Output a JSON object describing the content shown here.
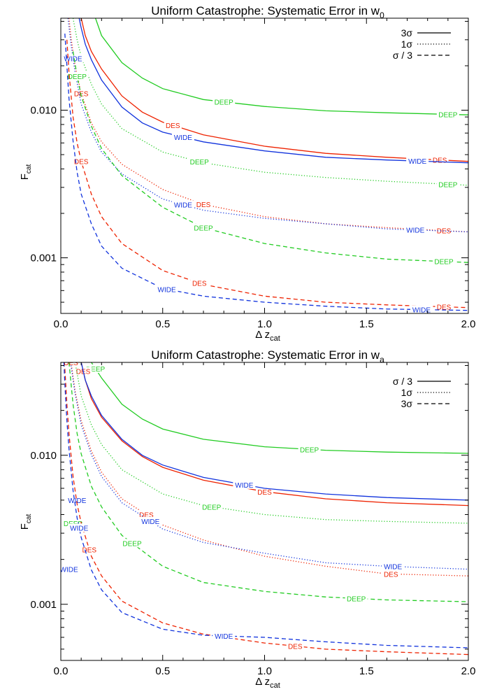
{
  "colors": {
    "DEEP": "#22cc22",
    "DES": "#ee2200",
    "WIDE": "#1133dd",
    "axis": "#000000"
  },
  "chart_data": [
    {
      "type": "line",
      "title": "Uniform Catastrophe: Systematic Error in w",
      "title_sub": "0",
      "xlabel": "Δ z",
      "xlabel_sub": "cat",
      "ylabel": "F",
      "ylabel_sub": "cat",
      "xlim": [
        0.0,
        2.0
      ],
      "ylim": [
        0.00042,
        0.042
      ],
      "yscale": "log",
      "xticks": [
        "0.0",
        "0.5",
        "1.0",
        "1.5",
        "2.0"
      ],
      "yticks": [
        "0.010",
        "0.001"
      ],
      "grid": false,
      "legend_position": "top-right",
      "legend": [
        {
          "label": "3σ",
          "style": "solid"
        },
        {
          "label": "1σ",
          "style": "dotted"
        },
        {
          "label": "σ / 3",
          "style": "dashed"
        }
      ],
      "series": [
        {
          "survey": "DEEP",
          "name": "DEEP",
          "style": "solid",
          "x": [
            0.17,
            0.2,
            0.3,
            0.4,
            0.5,
            0.7,
            1.0,
            1.3,
            1.6,
            2.0
          ],
          "y": [
            0.042,
            0.032,
            0.021,
            0.0165,
            0.014,
            0.0118,
            0.0106,
            0.0099,
            0.0096,
            0.0093
          ],
          "labels": [
            {
              "x": 0.8,
              "text": "DEEP"
            },
            {
              "x": 1.9,
              "text": "DEEP"
            }
          ]
        },
        {
          "survey": "DES",
          "name": "DES",
          "style": "solid",
          "x": [
            0.1,
            0.12,
            0.15,
            0.2,
            0.3,
            0.4,
            0.5,
            0.7,
            1.0,
            1.3,
            1.6,
            2.0
          ],
          "y": [
            0.042,
            0.032,
            0.025,
            0.019,
            0.0125,
            0.0097,
            0.0083,
            0.0068,
            0.0057,
            0.0051,
            0.0048,
            0.0045
          ],
          "labels": [
            {
              "x": 0.55,
              "text": "DES"
            },
            {
              "x": 1.86,
              "text": "DES"
            }
          ]
        },
        {
          "survey": "WIDE",
          "name": "WIDE",
          "style": "solid",
          "x": [
            0.09,
            0.1,
            0.12,
            0.15,
            0.2,
            0.3,
            0.4,
            0.5,
            0.7,
            1.0,
            1.3,
            1.6,
            2.0
          ],
          "y": [
            0.042,
            0.036,
            0.028,
            0.022,
            0.016,
            0.0105,
            0.0082,
            0.0071,
            0.0061,
            0.0053,
            0.0048,
            0.0046,
            0.0044
          ],
          "labels": [
            {
              "x": 0.6,
              "text": "WIDE"
            },
            {
              "x": 1.75,
              "text": "WIDE"
            }
          ]
        },
        {
          "survey": "DEEP",
          "name": "DEEP",
          "style": "dotted",
          "x": [
            0.06,
            0.08,
            0.1,
            0.15,
            0.2,
            0.3,
            0.5,
            0.7,
            1.0,
            1.3,
            1.6,
            2.0
          ],
          "y": [
            0.042,
            0.03,
            0.023,
            0.015,
            0.011,
            0.0075,
            0.0052,
            0.0044,
            0.0038,
            0.0035,
            0.0033,
            0.0031
          ],
          "labels": [
            {
              "x": 0.68,
              "text": "DEEP"
            },
            {
              "x": 1.9,
              "text": "DEEP"
            }
          ]
        },
        {
          "survey": "DES",
          "name": "DES",
          "style": "dotted",
          "x": [
            0.04,
            0.05,
            0.07,
            0.1,
            0.15,
            0.2,
            0.3,
            0.5,
            0.7,
            1.0,
            1.3,
            1.6,
            2.0
          ],
          "y": [
            0.042,
            0.031,
            0.02,
            0.013,
            0.0082,
            0.0061,
            0.0043,
            0.0029,
            0.0023,
            0.0019,
            0.0017,
            0.0016,
            0.0015
          ],
          "labels": [
            {
              "x": 0.1,
              "text": "DES"
            },
            {
              "x": 0.7,
              "text": "DES"
            },
            {
              "x": 1.88,
              "text": "DES"
            }
          ]
        },
        {
          "survey": "WIDE",
          "name": "WIDE",
          "style": "dotted",
          "x": [
            0.035,
            0.05,
            0.07,
            0.1,
            0.15,
            0.2,
            0.3,
            0.5,
            0.7,
            1.0,
            1.3,
            1.6,
            2.0
          ],
          "y": [
            0.042,
            0.028,
            0.018,
            0.011,
            0.0071,
            0.0052,
            0.0037,
            0.0025,
            0.0021,
            0.00185,
            0.0017,
            0.00157,
            0.0015
          ],
          "labels": [
            {
              "x": 0.06,
              "text": "WIDE"
            },
            {
              "x": 0.6,
              "text": "WIDE"
            },
            {
              "x": 1.74,
              "text": "WIDE"
            }
          ]
        },
        {
          "survey": "DEEP",
          "name": "DEEP",
          "style": "dashed",
          "x": [
            0.06,
            0.08,
            0.1,
            0.15,
            0.2,
            0.3,
            0.5,
            0.7,
            1.0,
            1.3,
            1.6,
            2.0
          ],
          "y": [
            0.025,
            0.017,
            0.0125,
            0.0078,
            0.0055,
            0.0036,
            0.0022,
            0.0016,
            0.00125,
            0.00108,
            0.00098,
            0.00093
          ],
          "labels": [
            {
              "x": 0.08,
              "text": "DEEP"
            },
            {
              "x": 0.7,
              "text": "DEEP"
            },
            {
              "x": 1.88,
              "text": "DEEP"
            }
          ]
        },
        {
          "survey": "DES",
          "name": "DES",
          "style": "dashed",
          "x": [
            0.03,
            0.04,
            0.06,
            0.08,
            0.1,
            0.15,
            0.2,
            0.3,
            0.5,
            0.7,
            1.0,
            1.3,
            1.6,
            2.0
          ],
          "y": [
            0.03,
            0.018,
            0.009,
            0.006,
            0.0045,
            0.0027,
            0.0019,
            0.00125,
            0.00082,
            0.00066,
            0.00055,
            0.0005,
            0.00048,
            0.00046
          ],
          "labels": [
            {
              "x": 0.1,
              "text": "DES"
            },
            {
              "x": 0.68,
              "text": "DES"
            },
            {
              "x": 1.88,
              "text": "DES"
            }
          ]
        },
        {
          "survey": "WIDE",
          "name": "WIDE",
          "style": "dashed",
          "x": [
            0.02,
            0.03,
            0.04,
            0.06,
            0.08,
            0.1,
            0.15,
            0.2,
            0.3,
            0.5,
            0.7,
            1.0,
            1.3,
            1.6,
            2.0
          ],
          "y": [
            0.033,
            0.02,
            0.012,
            0.0062,
            0.0038,
            0.0027,
            0.0017,
            0.0012,
            0.00085,
            0.00062,
            0.00055,
            0.0005,
            0.00047,
            0.00045,
            0.00044
          ],
          "labels": [
            {
              "x": 0.52,
              "text": "WIDE"
            },
            {
              "x": 1.77,
              "text": "WIDE"
            }
          ]
        }
      ]
    },
    {
      "type": "line",
      "title": "Uniform Catastrophe: Systematic Error in w",
      "title_sub": "a",
      "xlabel": "Δ z",
      "xlabel_sub": "cat",
      "ylabel": "F",
      "ylabel_sub": "cat",
      "xlim": [
        0.0,
        2.0
      ],
      "ylim": [
        0.00042,
        0.042
      ],
      "yscale": "log",
      "xticks": [
        "0.0",
        "0.5",
        "1.0",
        "1.5",
        "2.0"
      ],
      "yticks": [
        "0.010",
        "0.001"
      ],
      "grid": false,
      "legend_position": "top-right",
      "legend": [
        {
          "label": "σ / 3",
          "style": "solid"
        },
        {
          "label": "1σ",
          "style": "dotted"
        },
        {
          "label": "3σ",
          "style": "dashed"
        }
      ],
      "series": [
        {
          "survey": "DEEP",
          "name": "DEEP",
          "style": "solid",
          "x": [
            0.15,
            0.2,
            0.3,
            0.4,
            0.5,
            0.7,
            1.0,
            1.3,
            1.6,
            2.0
          ],
          "y": [
            0.042,
            0.033,
            0.022,
            0.0175,
            0.015,
            0.0128,
            0.0114,
            0.0108,
            0.0105,
            0.0103
          ],
          "labels": [
            {
              "x": 0.17,
              "text": "DEEP"
            },
            {
              "x": 1.22,
              "text": "DEEP"
            }
          ]
        },
        {
          "survey": "DES",
          "name": "DES",
          "style": "solid",
          "x": [
            0.1,
            0.12,
            0.15,
            0.2,
            0.3,
            0.4,
            0.5,
            0.7,
            1.0,
            1.3,
            1.6,
            2.0
          ],
          "y": [
            0.042,
            0.032,
            0.024,
            0.018,
            0.0125,
            0.0098,
            0.0083,
            0.0068,
            0.0057,
            0.0051,
            0.0048,
            0.0046
          ],
          "labels": [
            {
              "x": 0.11,
              "text": "DES"
            },
            {
              "x": 1.0,
              "text": "DES"
            }
          ]
        },
        {
          "survey": "WIDE",
          "name": "WIDE",
          "style": "solid",
          "x": [
            0.1,
            0.12,
            0.15,
            0.2,
            0.3,
            0.4,
            0.5,
            0.7,
            1.0,
            1.3,
            1.6,
            2.0
          ],
          "y": [
            0.042,
            0.032,
            0.025,
            0.0185,
            0.0128,
            0.01,
            0.0086,
            0.0071,
            0.006,
            0.0055,
            0.0052,
            0.005
          ],
          "labels": [
            {
              "x": 0.08,
              "text": "WIDE"
            },
            {
              "x": 0.9,
              "text": "WIDE"
            }
          ]
        },
        {
          "survey": "DEEP",
          "name": "DEEP",
          "style": "dotted",
          "x": [
            0.07,
            0.1,
            0.15,
            0.2,
            0.3,
            0.5,
            0.7,
            1.0,
            1.3,
            1.6,
            2.0
          ],
          "y": [
            0.042,
            0.025,
            0.016,
            0.0118,
            0.008,
            0.0055,
            0.0046,
            0.004,
            0.0037,
            0.0036,
            0.0035
          ],
          "labels": [
            {
              "x": 0.06,
              "text": "DEEP"
            },
            {
              "x": 0.74,
              "text": "DEEP"
            }
          ]
        },
        {
          "survey": "DES",
          "name": "DES",
          "style": "dotted",
          "x": [
            0.05,
            0.07,
            0.1,
            0.15,
            0.2,
            0.3,
            0.5,
            0.7,
            1.0,
            1.3,
            1.6,
            2.0
          ],
          "y": [
            0.042,
            0.027,
            0.017,
            0.0107,
            0.0077,
            0.0051,
            0.0034,
            0.0027,
            0.0021,
            0.0018,
            0.0016,
            0.00155
          ],
          "labels": [
            {
              "x": 0.05,
              "text": "DES"
            },
            {
              "x": 0.42,
              "text": "DES"
            },
            {
              "x": 1.62,
              "text": "DES"
            }
          ]
        },
        {
          "survey": "WIDE",
          "name": "WIDE",
          "style": "dotted",
          "x": [
            0.05,
            0.07,
            0.1,
            0.15,
            0.2,
            0.3,
            0.5,
            0.7,
            1.0,
            1.3,
            1.6,
            2.0
          ],
          "y": [
            0.04,
            0.026,
            0.016,
            0.0101,
            0.0072,
            0.0048,
            0.0032,
            0.0026,
            0.0022,
            0.0019,
            0.0018,
            0.00172
          ],
          "labels": [
            {
              "x": 0.04,
              "text": "WIDE"
            },
            {
              "x": 0.44,
              "text": "WIDE"
            },
            {
              "x": 1.63,
              "text": "WIDE"
            }
          ]
        },
        {
          "survey": "DEEP",
          "name": "DEEP",
          "style": "dashed",
          "x": [
            0.04,
            0.06,
            0.08,
            0.1,
            0.15,
            0.2,
            0.3,
            0.5,
            0.7,
            1.0,
            1.3,
            1.6,
            2.0
          ],
          "y": [
            0.042,
            0.022,
            0.014,
            0.0102,
            0.0062,
            0.0045,
            0.0029,
            0.0018,
            0.0014,
            0.00122,
            0.00112,
            0.00107,
            0.00104
          ],
          "labels": [
            {
              "x": 0.35,
              "text": "DEEP"
            },
            {
              "x": 1.45,
              "text": "DEEP"
            }
          ]
        },
        {
          "survey": "DES",
          "name": "DES",
          "style": "dashed",
          "x": [
            0.02,
            0.03,
            0.04,
            0.06,
            0.08,
            0.1,
            0.15,
            0.2,
            0.3,
            0.5,
            0.7,
            1.0,
            1.3,
            1.6,
            2.0
          ],
          "y": [
            0.038,
            0.022,
            0.014,
            0.0072,
            0.0047,
            0.0035,
            0.0021,
            0.00155,
            0.00105,
            0.00075,
            0.00063,
            0.00055,
            0.0005,
            0.00048,
            0.00046
          ],
          "labels": [
            {
              "x": 0.14,
              "text": "DES"
            },
            {
              "x": 1.15,
              "text": "DES"
            }
          ]
        },
        {
          "survey": "WIDE",
          "name": "WIDE",
          "style": "dashed",
          "x": [
            0.015,
            0.02,
            0.03,
            0.04,
            0.06,
            0.08,
            0.1,
            0.15,
            0.2,
            0.3,
            0.5,
            0.7,
            1.0,
            1.3,
            1.6,
            2.0
          ],
          "y": [
            0.042,
            0.03,
            0.017,
            0.011,
            0.0058,
            0.0038,
            0.0028,
            0.0017,
            0.00125,
            0.00088,
            0.00068,
            0.00062,
            0.0006,
            0.00056,
            0.00053,
            0.00051
          ],
          "labels": [
            {
              "x": 0.09,
              "text": "WIDE"
            },
            {
              "x": 0.8,
              "text": "WIDE"
            }
          ]
        }
      ]
    }
  ]
}
